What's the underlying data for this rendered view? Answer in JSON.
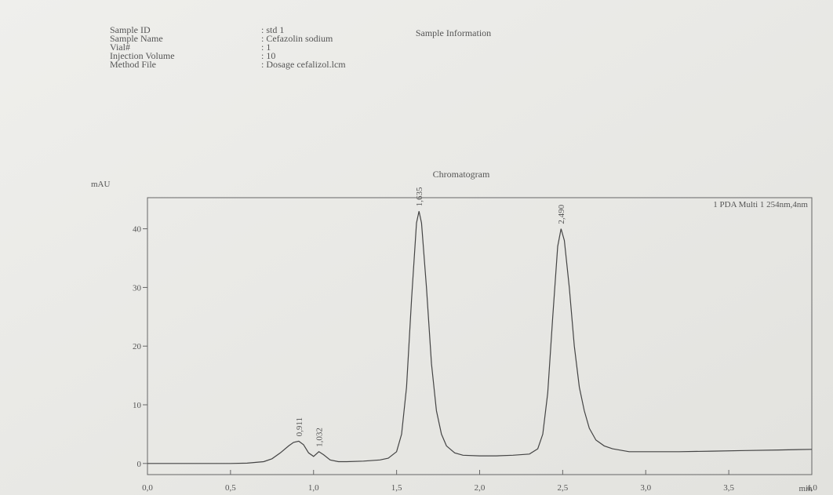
{
  "sample_info": {
    "title": "Sample Information",
    "fields": [
      {
        "label": "Sample ID",
        "value": ": std 1"
      },
      {
        "label": "Sample Name",
        "value": ": Cefazolin sodium"
      },
      {
        "label": "Vial#",
        "value": ": 1"
      },
      {
        "label": "Injection Volume",
        "value": ": 10"
      },
      {
        "label": "Method File",
        "value": ": Dosage cefalizol.lcm"
      }
    ]
  },
  "chart_data": {
    "type": "line",
    "title": "Chromatogram",
    "y_label": "mAU",
    "x_label": "min",
    "x": [
      0.0,
      0.1,
      0.2,
      0.3,
      0.4,
      0.5,
      0.6,
      0.7,
      0.75,
      0.8,
      0.85,
      0.88,
      0.911,
      0.94,
      0.97,
      1.0,
      1.032,
      1.06,
      1.1,
      1.15,
      1.2,
      1.3,
      1.4,
      1.45,
      1.5,
      1.53,
      1.56,
      1.59,
      1.62,
      1.635,
      1.65,
      1.68,
      1.71,
      1.74,
      1.77,
      1.8,
      1.85,
      1.9,
      2.0,
      2.1,
      2.2,
      2.3,
      2.35,
      2.38,
      2.41,
      2.44,
      2.47,
      2.49,
      2.51,
      2.54,
      2.57,
      2.6,
      2.63,
      2.66,
      2.7,
      2.75,
      2.8,
      2.9,
      3.0,
      3.2,
      3.4,
      3.6,
      3.8,
      4.0
    ],
    "series": [
      {
        "name": "1 PDA Multi 1 254nm,4nm",
        "color": "#444444",
        "values": [
          0,
          0,
          0,
          0,
          0,
          0,
          0.05,
          0.3,
          0.8,
          1.8,
          3.0,
          3.6,
          3.8,
          3.2,
          1.8,
          1.2,
          2.0,
          1.5,
          0.6,
          0.3,
          0.3,
          0.4,
          0.6,
          0.9,
          2,
          5,
          13,
          28,
          41,
          43,
          41,
          30,
          17,
          9,
          5,
          3,
          1.8,
          1.4,
          1.3,
          1.3,
          1.4,
          1.6,
          2.5,
          5,
          12,
          25,
          37,
          40,
          38,
          30,
          20,
          13,
          9,
          6,
          4,
          3,
          2.5,
          2.0,
          2.0,
          2.0,
          2.1,
          2.2,
          2.3,
          2.4
        ]
      }
    ],
    "peaks": [
      {
        "x": 0.911,
        "label": "0,911"
      },
      {
        "x": 1.032,
        "label": "1,032"
      },
      {
        "x": 1.635,
        "label": "1,635"
      },
      {
        "x": 2.49,
        "label": "2,490"
      }
    ],
    "xlim": [
      0,
      4.0
    ],
    "xticks": [
      {
        "value": 0,
        "label": "0,0"
      },
      {
        "value": 0.5,
        "label": "0,5"
      },
      {
        "value": 1.0,
        "label": "1,0"
      },
      {
        "value": 1.5,
        "label": "1,5"
      },
      {
        "value": 2.0,
        "label": "2,0"
      },
      {
        "value": 2.5,
        "label": "2,5"
      },
      {
        "value": 3.0,
        "label": "3,0"
      },
      {
        "value": 3.5,
        "label": "3,5"
      },
      {
        "value": 4.0,
        "label": "4,0"
      }
    ],
    "ylim": [
      -1.9,
      45.3
    ],
    "yticks": [
      0,
      10,
      20,
      30,
      40
    ]
  }
}
